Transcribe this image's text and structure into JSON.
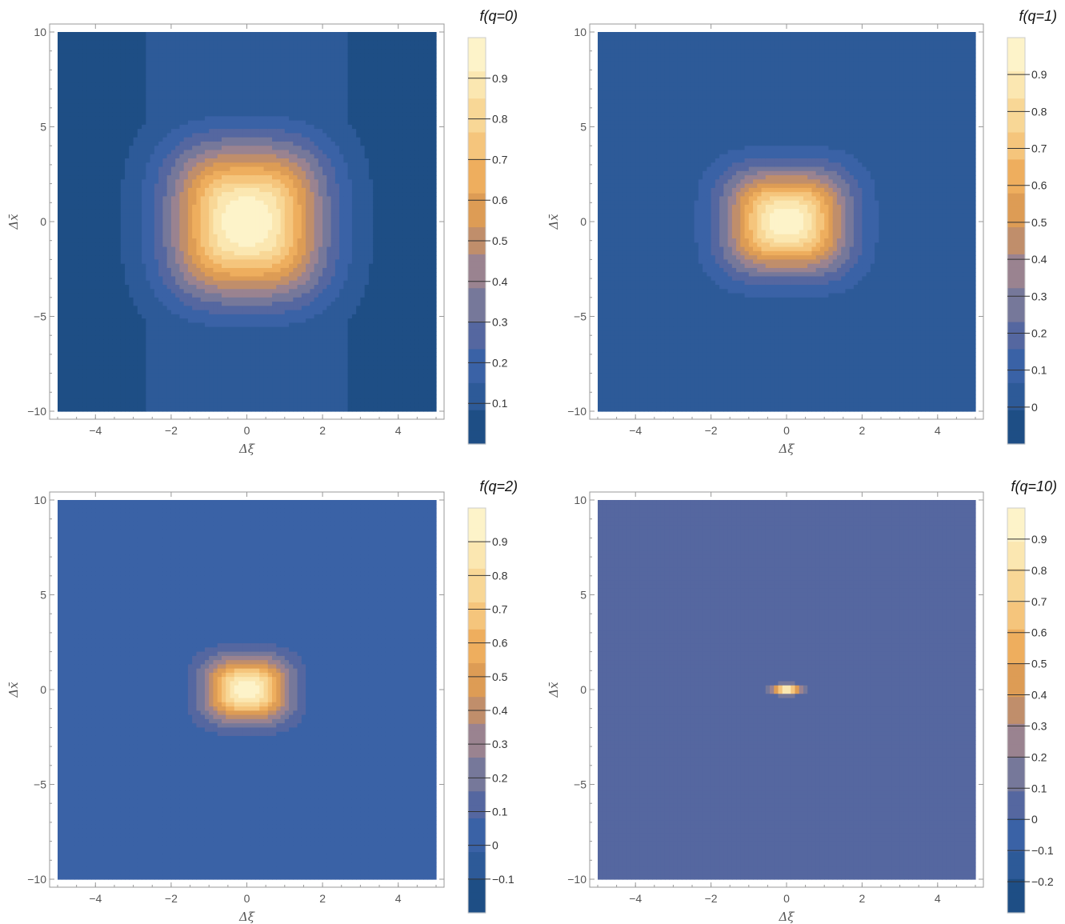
{
  "chart_data": [
    {
      "type": "contour",
      "title": "f(q=0)",
      "xlabel": "Δξ",
      "ylabel": "Δx̄",
      "xlim": [
        -5,
        5
      ],
      "ylim": [
        -10,
        10
      ],
      "xticks": [
        "−4",
        "−2",
        "0",
        "2",
        "4"
      ],
      "yticks": [
        "10",
        "5",
        "0",
        "−5",
        "−10"
      ],
      "colorbar": {
        "range": [
          0,
          1
        ],
        "levels": [
          "0.1",
          "0.2",
          "0.3",
          "0.4",
          "0.5",
          "0.6",
          "0.7",
          "0.8",
          "0.9"
        ],
        "level_values": [
          0.1,
          0.2,
          0.3,
          0.4,
          0.5,
          0.6,
          0.7,
          0.8,
          0.9
        ]
      },
      "peak": {
        "x": 0,
        "y": 0,
        "value": 1.0
      }
    },
    {
      "type": "contour",
      "title": "f(q=1)",
      "xlabel": "Δξ",
      "ylabel": "Δx̄",
      "xlim": [
        -5,
        5
      ],
      "ylim": [
        -10,
        10
      ],
      "xticks": [
        "−4",
        "−2",
        "0",
        "2",
        "4"
      ],
      "yticks": [
        "10",
        "5",
        "0",
        "−5",
        "−10"
      ],
      "colorbar": {
        "range": [
          -0.1,
          1
        ],
        "levels": [
          "0",
          "0.1",
          "0.2",
          "0.3",
          "0.4",
          "0.5",
          "0.6",
          "0.7",
          "0.8",
          "0.9"
        ],
        "level_values": [
          0,
          0.1,
          0.2,
          0.3,
          0.4,
          0.5,
          0.6,
          0.7,
          0.8,
          0.9
        ]
      },
      "peak": {
        "x": 0,
        "y": 0,
        "value": 1.0
      }
    },
    {
      "type": "contour",
      "title": "f(q=2)",
      "xlabel": "Δξ",
      "ylabel": "Δx̄",
      "xlim": [
        -5,
        5
      ],
      "ylim": [
        -10,
        10
      ],
      "xticks": [
        "−4",
        "−2",
        "0",
        "2",
        "4"
      ],
      "yticks": [
        "10",
        "5",
        "0",
        "−5",
        "−10"
      ],
      "colorbar": {
        "range": [
          -0.2,
          1
        ],
        "levels": [
          "−0.1",
          "0",
          "0.1",
          "0.2",
          "0.3",
          "0.4",
          "0.5",
          "0.6",
          "0.7",
          "0.8",
          "0.9"
        ],
        "level_values": [
          -0.1,
          0,
          0.1,
          0.2,
          0.3,
          0.4,
          0.5,
          0.6,
          0.7,
          0.8,
          0.9
        ]
      },
      "peak": {
        "x": 0,
        "y": 0,
        "value": 1.0
      }
    },
    {
      "type": "contour",
      "title": "f(q=10)",
      "xlabel": "Δξ",
      "ylabel": "Δx̄",
      "xlim": [
        -5,
        5
      ],
      "ylim": [
        -10,
        10
      ],
      "xticks": [
        "−4",
        "−2",
        "0",
        "2",
        "4"
      ],
      "yticks": [
        "10",
        "5",
        "0",
        "−5",
        "−10"
      ],
      "colorbar": {
        "range": [
          -0.3,
          1
        ],
        "levels": [
          "−0.2",
          "−0.1",
          "0",
          "0.1",
          "0.2",
          "0.3",
          "0.4",
          "0.5",
          "0.6",
          "0.7",
          "0.8",
          "0.9"
        ],
        "level_values": [
          -0.2,
          -0.1,
          0,
          0.1,
          0.2,
          0.3,
          0.4,
          0.5,
          0.6,
          0.7,
          0.8,
          0.9
        ]
      },
      "peak": {
        "x": 0,
        "y": 0,
        "value": 1.0
      }
    }
  ],
  "colors": {
    "palette": [
      "#1e4e85",
      "#2d5a98",
      "#3a62a6",
      "#5567a0",
      "#76789a",
      "#9a8390",
      "#c08e6b",
      "#dd9c55",
      "#eeae5e",
      "#f5c57c",
      "#f8d796",
      "#fbe7b1",
      "#fdf3c9"
    ],
    "contour_line": "#222222",
    "frame": "#999999"
  }
}
